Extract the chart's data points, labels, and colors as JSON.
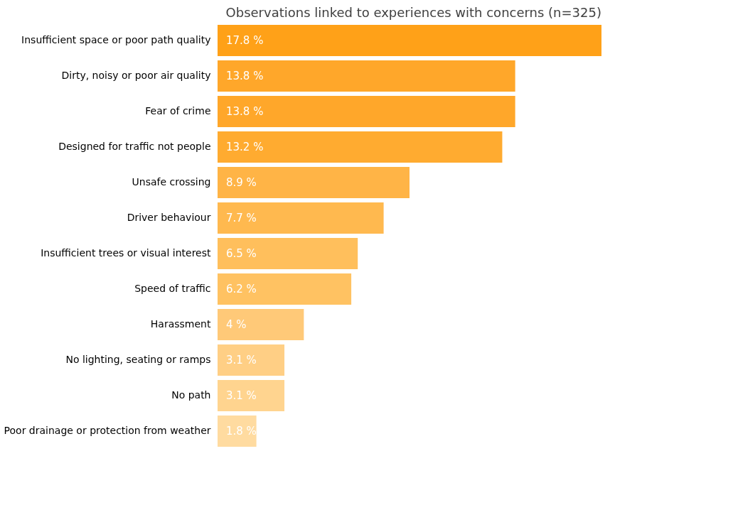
{
  "chart_data": {
    "type": "bar",
    "orientation": "horizontal",
    "title": "Observations linked to experiences with concerns (n=325)",
    "categories": [
      "Insufficient space or poor path quality",
      "Dirty, noisy or poor air quality",
      "Fear of crime",
      "Designed for traffic not people",
      "Unsafe crossing",
      "Driver behaviour",
      "Insufficient trees or visual interest",
      "Speed of traffic",
      "Harassment",
      "No lighting, seating or ramps",
      "No path",
      "Poor drainage or protection from weather"
    ],
    "values": [
      17.8,
      13.8,
      13.8,
      13.2,
      8.9,
      7.7,
      6.5,
      6.2,
      4,
      3.1,
      3.1,
      1.8
    ],
    "value_labels": [
      "17.8 %",
      "13.8 %",
      "13.8 %",
      "13.2 %",
      "8.9 %",
      "7.7 %",
      "6.5 %",
      "6.2 %",
      "4 %",
      "3.1 %",
      "3.1 %",
      "1.8 %"
    ],
    "colors": [
      "#ffa118",
      "#ffa72a",
      "#ffa72a",
      "#ffab30",
      "#ffb446",
      "#ffb94f",
      "#ffbf5c",
      "#ffc262",
      "#ffc978",
      "#ffcf85",
      "#ffd48f",
      "#ffdba0"
    ],
    "grid": false
  }
}
